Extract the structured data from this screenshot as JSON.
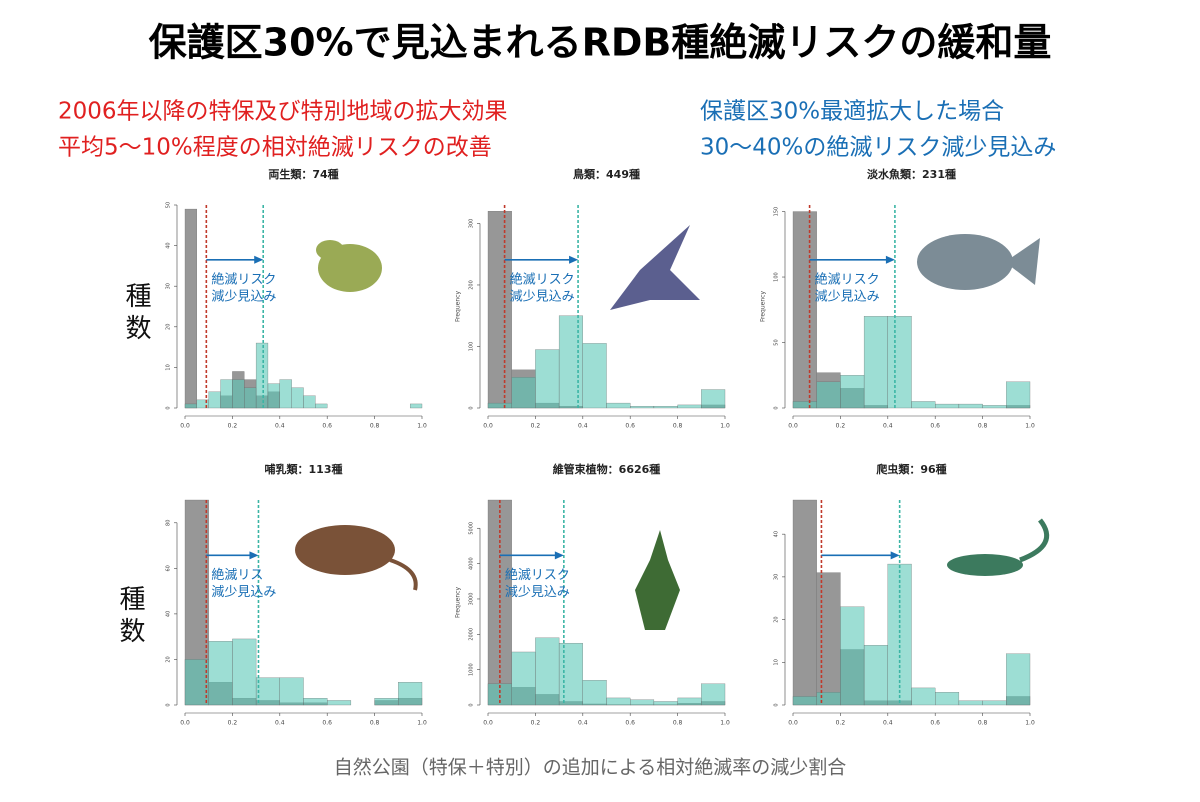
{
  "title": "保護区30%で見込まれるRDB種絶滅リスクの緩和量",
  "notes_left": [
    "2006年以降の特保及び特別地域の拡大効果",
    "平均5〜10%程度の相対絶滅リスクの改善"
  ],
  "notes_right": [
    "保護区30%最適拡大した場合",
    "30〜40%の絶滅リスク減少見込み"
  ],
  "side_label": "種数",
  "x_label": "自然公園（特保＋特別）の追加による相対絶滅率の減少割合",
  "chart_data": [
    {
      "type": "histogram",
      "title": "両生類：74種",
      "bins": [
        0,
        0.05,
        0.1,
        0.15,
        0.2,
        0.25,
        0.3,
        0.35,
        0.4,
        0.45,
        0.5,
        0.55,
        0.6,
        0.65,
        0.7,
        0.75,
        0.8,
        0.85,
        0.9,
        0.95,
        1.0
      ],
      "series": [
        {
          "color": "#8c8c8c",
          "values": [
            49,
            0,
            0,
            3,
            9,
            7,
            3,
            4,
            0,
            0,
            0,
            0,
            0,
            0,
            0,
            0,
            0,
            0,
            0,
            0
          ]
        },
        {
          "color": "#5cc8b8",
          "values": [
            1,
            2,
            4,
            7,
            7,
            5,
            16,
            6,
            7,
            5,
            3,
            1,
            0,
            0,
            0,
            0,
            0,
            0,
            0,
            1
          ]
        }
      ],
      "vlines": [
        {
          "value": 0.09,
          "color": "#c0392b"
        },
        {
          "value": 0.33,
          "color": "#3bb5a5"
        }
      ],
      "annotation": [
        "絶滅リスク",
        "減少見込み"
      ],
      "xlim": [
        0,
        1
      ],
      "ylim": [
        0,
        50
      ],
      "xticks": [
        {
          "value": 0,
          "label": "0.0"
        },
        {
          "value": 0.2,
          "label": "0.2"
        },
        {
          "value": 0.4,
          "label": "0.4"
        },
        {
          "value": 0.6,
          "label": "0.6"
        },
        {
          "value": 0.8,
          "label": "0.8"
        },
        {
          "value": 1,
          "label": "1.0"
        }
      ],
      "yticks": [
        0,
        10,
        20,
        30,
        40,
        50
      ]
    },
    {
      "type": "histogram",
      "title": "鳥類：449種",
      "ylabel": "Frequency",
      "bins": [
        0,
        0.1,
        0.2,
        0.3,
        0.4,
        0.5,
        0.6,
        0.7,
        0.8,
        0.9,
        1.0
      ],
      "series": [
        {
          "color": "#8c8c8c",
          "values": [
            320,
            62,
            8,
            3,
            0,
            0,
            0,
            0,
            0,
            5
          ]
        },
        {
          "color": "#5cc8b8",
          "values": [
            8,
            50,
            95,
            150,
            105,
            8,
            3,
            3,
            5,
            30
          ]
        }
      ],
      "vlines": [
        {
          "value": 0.07,
          "color": "#c0392b"
        },
        {
          "value": 0.38,
          "color": "#3bb5a5"
        }
      ],
      "annotation": [
        "絶滅リスク",
        "減少見込み"
      ],
      "xlim": [
        0,
        1
      ],
      "ylim": [
        0,
        330
      ],
      "xticks": [
        {
          "value": 0,
          "label": "0.0"
        },
        {
          "value": 0.2,
          "label": "0.2"
        },
        {
          "value": 0.4,
          "label": "0.4"
        },
        {
          "value": 0.6,
          "label": "0.6"
        },
        {
          "value": 0.8,
          "label": "0.8"
        },
        {
          "value": 1,
          "label": "1.0"
        }
      ],
      "yticks": [
        0,
        100,
        200,
        300
      ]
    },
    {
      "type": "histogram",
      "title": "淡水魚類：231種",
      "ylabel": "Frequency",
      "bins": [
        0,
        0.1,
        0.2,
        0.3,
        0.4,
        0.5,
        0.6,
        0.7,
        0.8,
        0.9,
        1.0
      ],
      "series": [
        {
          "color": "#8c8c8c",
          "values": [
            150,
            27,
            15,
            2,
            0,
            0,
            0,
            0,
            0,
            2
          ]
        },
        {
          "color": "#5cc8b8",
          "values": [
            5,
            20,
            25,
            70,
            70,
            5,
            3,
            3,
            2,
            20
          ]
        }
      ],
      "vlines": [
        {
          "value": 0.07,
          "color": "#c0392b"
        },
        {
          "value": 0.43,
          "color": "#3bb5a5"
        }
      ],
      "annotation": [
        "絶滅リスク",
        "減少見込み"
      ],
      "xlim": [
        0,
        1
      ],
      "ylim": [
        0,
        155
      ],
      "xticks": [
        {
          "value": 0,
          "label": "0.0"
        },
        {
          "value": 0.2,
          "label": "0.2"
        },
        {
          "value": 0.4,
          "label": "0.4"
        },
        {
          "value": 0.6,
          "label": "0.6"
        },
        {
          "value": 0.8,
          "label": "0.8"
        },
        {
          "value": 1,
          "label": "1.0"
        }
      ],
      "yticks": [
        0,
        50,
        100,
        150
      ]
    },
    {
      "type": "histogram",
      "title": "哺乳類：113種",
      "bins": [
        0,
        0.1,
        0.2,
        0.3,
        0.4,
        0.5,
        0.6,
        0.7,
        0.8,
        0.9,
        1.0
      ],
      "series": [
        {
          "color": "#8c8c8c",
          "values": [
            90,
            10,
            3,
            2,
            1,
            1,
            0,
            0,
            2,
            3
          ]
        },
        {
          "color": "#5cc8b8",
          "values": [
            20,
            28,
            29,
            12,
            12,
            3,
            2,
            0,
            3,
            10
          ]
        }
      ],
      "vlines": [
        {
          "value": 0.09,
          "color": "#c0392b"
        },
        {
          "value": 0.31,
          "color": "#3bb5a5"
        }
      ],
      "annotation": [
        "絶滅リス",
        "減少見込み"
      ],
      "xlim": [
        0,
        1
      ],
      "ylim": [
        0,
        90
      ],
      "xticks": [
        {
          "value": 0,
          "label": "0.0"
        },
        {
          "value": 0.2,
          "label": "0.2"
        },
        {
          "value": 0.4,
          "label": "0.4"
        },
        {
          "value": 0.6,
          "label": "0.6"
        },
        {
          "value": 0.8,
          "label": "0.8"
        },
        {
          "value": 1,
          "label": "1.0"
        }
      ],
      "yticks": [
        0,
        20,
        40,
        60,
        80
      ]
    },
    {
      "type": "histogram",
      "title": "維管束植物：6626種",
      "ylabel": "Frequency",
      "bins": [
        0,
        0.1,
        0.2,
        0.3,
        0.4,
        0.5,
        0.6,
        0.7,
        0.8,
        0.9,
        1.0
      ],
      "series": [
        {
          "color": "#8c8c8c",
          "values": [
            5800,
            500,
            300,
            100,
            30,
            10,
            10,
            10,
            50,
            100
          ]
        },
        {
          "color": "#5cc8b8",
          "values": [
            600,
            1500,
            1900,
            1750,
            700,
            200,
            150,
            100,
            200,
            600
          ]
        }
      ],
      "vlines": [
        {
          "value": 0.05,
          "color": "#c0392b"
        },
        {
          "value": 0.32,
          "color": "#3bb5a5"
        }
      ],
      "annotation": [
        "絶滅リスク",
        "減少見込み"
      ],
      "xlim": [
        0,
        1
      ],
      "ylim": [
        0,
        5800
      ],
      "xticks": [
        {
          "value": 0,
          "label": "0.0"
        },
        {
          "value": 0.2,
          "label": "0.2"
        },
        {
          "value": 0.4,
          "label": "0.4"
        },
        {
          "value": 0.6,
          "label": "0.6"
        },
        {
          "value": 0.8,
          "label": "0.8"
        },
        {
          "value": 1,
          "label": "1.0"
        }
      ],
      "yticks": [
        0,
        1000,
        2000,
        3000,
        4000,
        5000
      ]
    },
    {
      "type": "histogram",
      "title": "爬虫類：96種",
      "bins": [
        0,
        0.1,
        0.2,
        0.3,
        0.4,
        0.5,
        0.6,
        0.7,
        0.8,
        0.9,
        1.0
      ],
      "series": [
        {
          "color": "#8c8c8c",
          "values": [
            48,
            31,
            13,
            1,
            1,
            0,
            0,
            0,
            0,
            2
          ]
        },
        {
          "color": "#5cc8b8",
          "values": [
            2,
            3,
            23,
            14,
            33,
            4,
            3,
            1,
            1,
            12
          ]
        }
      ],
      "vlines": [
        {
          "value": 0.12,
          "color": "#c0392b"
        },
        {
          "value": 0.45,
          "color": "#3bb5a5"
        }
      ],
      "xlim": [
        0,
        1
      ],
      "ylim": [
        0,
        48
      ],
      "xticks": [
        {
          "value": 0,
          "label": "0.0"
        },
        {
          "value": 0.2,
          "label": "0.2"
        },
        {
          "value": 0.4,
          "label": "0.4"
        },
        {
          "value": 0.6,
          "label": "0.6"
        },
        {
          "value": 0.8,
          "label": "0.8"
        },
        {
          "value": 1,
          "label": "1.0"
        }
      ],
      "yticks": [
        0,
        10,
        20,
        30,
        40
      ]
    }
  ]
}
